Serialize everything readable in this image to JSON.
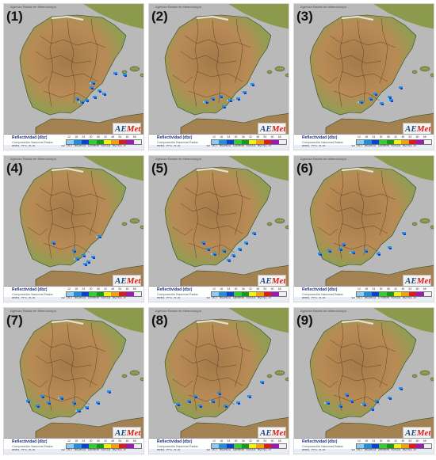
{
  "agency": "Agencia Estatal de Meteorología",
  "logo_text_a": "AE",
  "logo_text_b": "Met",
  "legend": {
    "title": "Reflectividad (dbz)",
    "subtitle": "Composición Nacional Radar",
    "ticks": [
      "12",
      "18",
      "24",
      "30",
      "36",
      "42",
      "48",
      "54",
      "60",
      "66"
    ],
    "colors": [
      "#8ecbf0",
      "#1d8fe0",
      "#0a3fd8",
      "#2fd02f",
      "#179b17",
      "#f2f20c",
      "#f2a20c",
      "#e21a1a",
      "#9b1ab3",
      "#f0f0f0"
    ],
    "product": "0001 PPI-R-N"
  },
  "panels": [
    {
      "label": "(1)",
      "date": "19 OCT 062023",
      "time": "120000",
      "codes": "01514 09751.0"
    },
    {
      "label": "(2)",
      "date": "19 OCT 062023",
      "time": "130000",
      "codes": "01514 09751.0"
    },
    {
      "label": "(3)",
      "date": "19 OCT 062023",
      "time": "140000",
      "codes": "01514 09751.0"
    },
    {
      "label": "(4)",
      "date": "19 OCT 062023",
      "time": "150000",
      "codes": "01514 09751.0"
    },
    {
      "label": "(5)",
      "date": "19 OCT 062023",
      "time": "160000",
      "codes": "01514 09751.0"
    },
    {
      "label": "(6)",
      "date": "19 OCT 062023",
      "time": "170000",
      "codes": "01514 09751.0"
    },
    {
      "label": "(7)",
      "date": "19 OCT 062023",
      "time": "180000",
      "codes": "01514 09751.0"
    },
    {
      "label": "(8)",
      "date": "19 OCT 062023",
      "time": "190000",
      "codes": "01514 09751.0"
    },
    {
      "label": "(9)",
      "date": "19 OCT 062023",
      "time": "200000",
      "codes": "01514 09751.0"
    }
  ]
}
